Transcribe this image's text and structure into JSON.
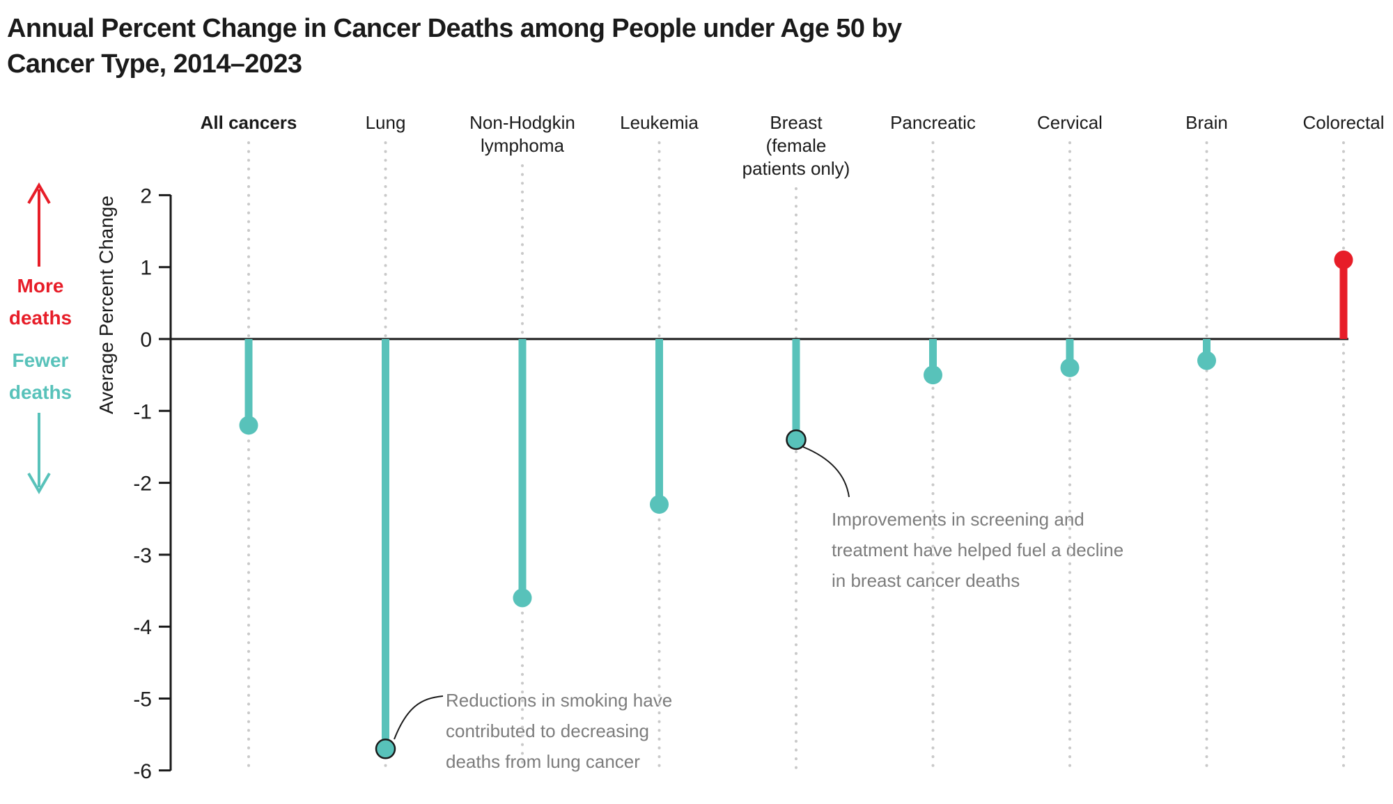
{
  "header": {
    "title_line1": "Annual Percent Change in Cancer Deaths among People under Age 50 by",
    "title_line2": "Cancer Type, 2014–2023"
  },
  "side_labels": {
    "more": "More deaths",
    "fewer": "Fewer deaths"
  },
  "annotations": {
    "lung": "Reductions in smoking have contributed to decreasing deaths from lung cancer",
    "breast": "Improvements in screening and treatment have helped fuel a decline in breast cancer deaths"
  },
  "colors": {
    "decrease": "#58c2ba",
    "increase": "#e71d28",
    "annotation_text": "#7c7c7c",
    "guide": "#c9c9c9",
    "axis": "#1a1a1a"
  },
  "chart_data": {
    "type": "lollipop",
    "title": "Annual Percent Change in Cancer Deaths among People under Age 50 by Cancer Type, 2014–2023",
    "ylabel": "Average Percent Change",
    "ylim": [
      -6,
      2
    ],
    "yticks": [
      2,
      1,
      0,
      -1,
      -2,
      -3,
      -4,
      -5,
      -6
    ],
    "grid": "dotted vertical guide per category",
    "legend": "none",
    "categories": [
      "All cancers",
      "Lung",
      "Non-Hodgkin lymphoma",
      "Leukemia",
      "Breast (female patients only)",
      "Pancreatic",
      "Cervical",
      "Brain",
      "Colorectal"
    ],
    "values": [
      -1.2,
      -5.7,
      -3.6,
      -2.3,
      -1.4,
      -0.5,
      -0.4,
      -0.3,
      1.1
    ],
    "points": [
      {
        "label_lines": [
          "All cancers"
        ],
        "value": -1.2,
        "bold": true,
        "annotated": false
      },
      {
        "label_lines": [
          "Lung"
        ],
        "value": -5.7,
        "bold": false,
        "annotated": true
      },
      {
        "label_lines": [
          "Non-Hodgkin",
          "lymphoma"
        ],
        "value": -3.6,
        "bold": false,
        "annotated": false
      },
      {
        "label_lines": [
          "Leukemia"
        ],
        "value": -2.3,
        "bold": false,
        "annotated": false
      },
      {
        "label_lines": [
          "Breast",
          "(female",
          "patients only)"
        ],
        "value": -1.4,
        "bold": false,
        "annotated": true
      },
      {
        "label_lines": [
          "Pancreatic"
        ],
        "value": -0.5,
        "bold": false,
        "annotated": false
      },
      {
        "label_lines": [
          "Cervical"
        ],
        "value": -0.4,
        "bold": false,
        "annotated": false
      },
      {
        "label_lines": [
          "Brain"
        ],
        "value": -0.3,
        "bold": false,
        "annotated": false
      },
      {
        "label_lines": [
          "Colorectal"
        ],
        "value": 1.1,
        "bold": false,
        "annotated": false
      }
    ]
  }
}
